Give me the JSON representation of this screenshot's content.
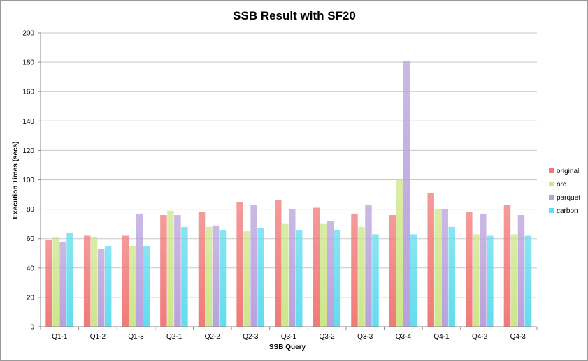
{
  "chart_data": {
    "type": "bar",
    "title": "SSB Result with SF20",
    "xlabel": "SSB Query",
    "ylabel": "Execution Times (secs)",
    "ylim": [
      0,
      200
    ],
    "yticks": [
      0,
      20,
      40,
      60,
      80,
      100,
      120,
      140,
      160,
      180,
      200
    ],
    "grid": true,
    "legend_position": "right",
    "categories": [
      "Q1-1",
      "Q1-2",
      "Q1-3",
      "Q2-1",
      "Q2-2",
      "Q2-3",
      "Q3-1",
      "Q3-2",
      "Q3-3",
      "Q3-4",
      "Q4-1",
      "Q4-2",
      "Q4-3"
    ],
    "series": [
      {
        "name": "original",
        "color": "#f07a78",
        "values": [
          59,
          62,
          62,
          76,
          78,
          85,
          86,
          81,
          77,
          76,
          91,
          78,
          83
        ]
      },
      {
        "name": "orc",
        "color": "#cde68a",
        "values": [
          61,
          61,
          55,
          79,
          68,
          65,
          70,
          70,
          68,
          100,
          80,
          63,
          63
        ]
      },
      {
        "name": "parquet",
        "color": "#b9a2dc",
        "values": [
          58,
          53,
          77,
          76,
          69,
          83,
          80,
          72,
          83,
          181,
          80,
          77,
          76
        ]
      },
      {
        "name": "carbon",
        "color": "#62dcef",
        "values": [
          64,
          55,
          55,
          68,
          66,
          67,
          66,
          66,
          63,
          63,
          68,
          62,
          62
        ]
      }
    ]
  }
}
